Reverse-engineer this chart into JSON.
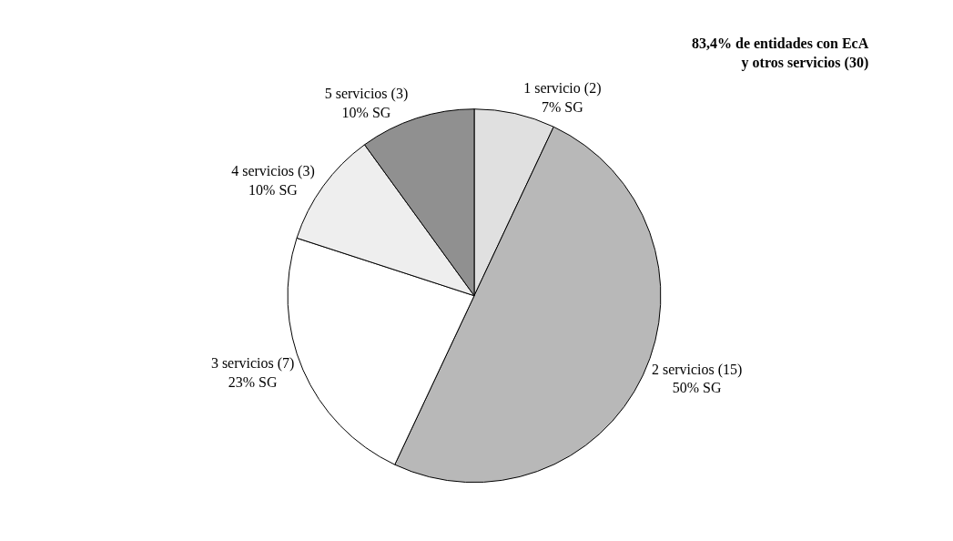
{
  "chart_data": {
    "type": "pie",
    "title": "83,4% de entidades con EcA y otros servicios (30)",
    "categories": [
      "1 servicio (2)",
      "2 servicios (15)",
      "3 servicios (7)",
      "4 servicios (3)",
      "5 servicios (3)"
    ],
    "values": [
      7,
      50,
      23,
      10,
      10
    ],
    "value_labels": [
      "7% SG",
      "50% SG",
      "23% SG",
      "10% SG",
      "10% SG"
    ],
    "colors": [
      "#e0e0e0",
      "#b8b8b8",
      "#ffffff",
      "#eeeeee",
      "#909090"
    ],
    "legend": false
  }
}
